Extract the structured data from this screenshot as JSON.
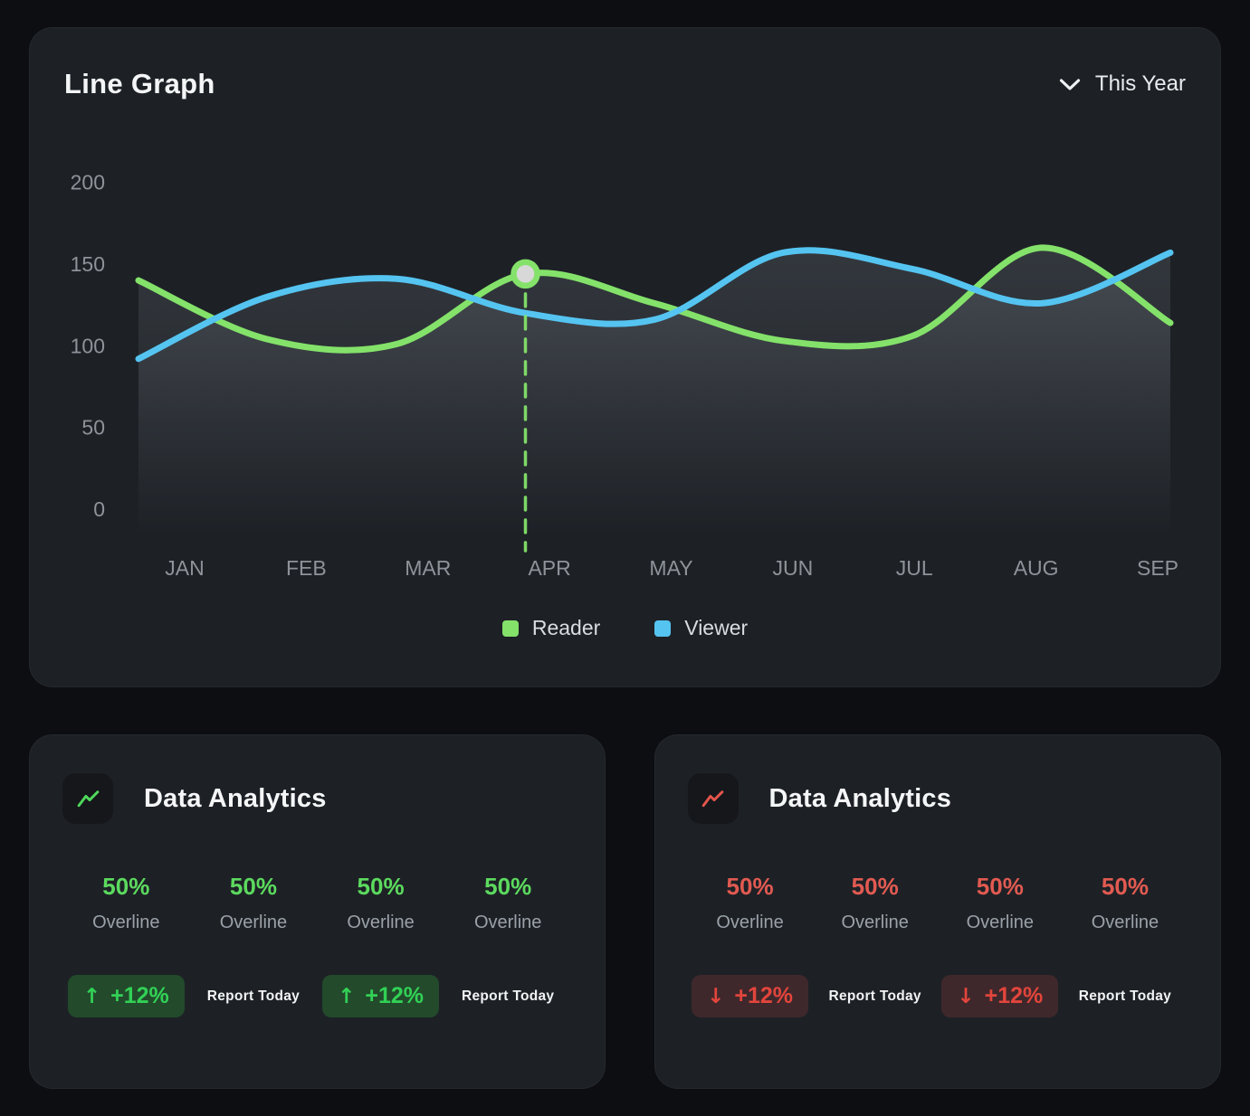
{
  "line_graph_card": {
    "title": "Line Graph",
    "period_selector": {
      "label": "This Year"
    }
  },
  "chart_data": {
    "type": "line",
    "x": [
      "JAN",
      "FEB",
      "MAR",
      "APR",
      "MAY",
      "JUN",
      "JUL",
      "AUG",
      "SEP"
    ],
    "series": [
      {
        "name": "Reader",
        "color": "#84E26A",
        "values": [
          140,
          104,
          101,
          144,
          126,
          103,
          106,
          160,
          114
        ]
      },
      {
        "name": "Viewer",
        "color": "#55C4F1",
        "values": [
          92,
          130,
          141,
          120,
          116,
          157,
          147,
          126,
          157
        ]
      }
    ],
    "yticks": [
      0,
      50,
      100,
      150,
      200
    ],
    "ylim": [
      0,
      215
    ],
    "grid": false,
    "legend_position": "bottom",
    "area_fill": true,
    "highlight": {
      "series": "Reader",
      "x": "APR",
      "value": 144,
      "marker_fill": "#d8d8d8"
    }
  },
  "analytics_cards": [
    {
      "title": "Data Analytics",
      "accent": "#4FD95B",
      "trend": "up",
      "stats": [
        {
          "value": "50%",
          "label": "Overline"
        },
        {
          "value": "50%",
          "label": "Overline"
        },
        {
          "value": "50%",
          "label": "Overline"
        },
        {
          "value": "50%",
          "label": "Overline"
        }
      ],
      "footer": {
        "badge_arrow": "↑",
        "badge_text": "+12%",
        "report_text": "Report Today"
      }
    },
    {
      "title": "Data Analytics",
      "accent": "#E4554C",
      "trend": "down",
      "stats": [
        {
          "value": "50%",
          "label": "Overline"
        },
        {
          "value": "50%",
          "label": "Overline"
        },
        {
          "value": "50%",
          "label": "Overline"
        },
        {
          "value": "50%",
          "label": "Overline"
        }
      ],
      "footer": {
        "badge_arrow": "↓",
        "badge_text": "+12%",
        "report_text": "Report Today"
      }
    }
  ]
}
